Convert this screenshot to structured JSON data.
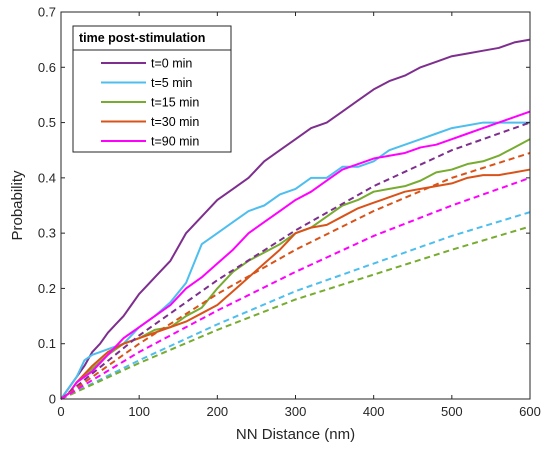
{
  "chart_data": {
    "type": "line",
    "title": "",
    "xlabel": "NN Distance (nm)",
    "ylabel": "Probability",
    "xlim": [
      0,
      600
    ],
    "ylim": [
      0,
      0.7
    ],
    "xticks": [
      0,
      100,
      200,
      300,
      400,
      500,
      600
    ],
    "yticks": [
      0,
      0.1,
      0.2,
      0.3,
      0.4,
      0.5,
      0.6,
      0.7
    ],
    "xtick_labels": [
      "0",
      "100",
      "200",
      "300",
      "400",
      "500",
      "600"
    ],
    "ytick_labels": [
      "0",
      "0.1",
      "0.2",
      "0.3",
      "0.4",
      "0.5",
      "0.6",
      "0.7"
    ],
    "grid": false,
    "legend": {
      "title": "time post-stimulation",
      "placement": "top-left"
    },
    "series": [
      {
        "name": "t=0 min",
        "color": "#7e2f8e",
        "style": "solid",
        "x": [
          0,
          10,
          20,
          30,
          40,
          50,
          60,
          70,
          80,
          90,
          100,
          110,
          120,
          140,
          160,
          180,
          200,
          220,
          240,
          260,
          280,
          300,
          320,
          340,
          360,
          380,
          400,
          420,
          440,
          460,
          480,
          500,
          520,
          540,
          560,
          580,
          600
        ],
        "y": [
          0,
          0.02,
          0.04,
          0.06,
          0.085,
          0.1,
          0.12,
          0.135,
          0.15,
          0.17,
          0.19,
          0.205,
          0.22,
          0.25,
          0.3,
          0.33,
          0.36,
          0.38,
          0.4,
          0.43,
          0.45,
          0.47,
          0.49,
          0.5,
          0.52,
          0.54,
          0.56,
          0.575,
          0.585,
          0.6,
          0.61,
          0.62,
          0.625,
          0.63,
          0.635,
          0.645,
          0.65
        ]
      },
      {
        "name": "t=5 min",
        "color": "#4dbeee",
        "style": "solid",
        "x": [
          0,
          10,
          20,
          30,
          40,
          50,
          60,
          80,
          100,
          120,
          140,
          160,
          180,
          200,
          220,
          240,
          260,
          280,
          300,
          320,
          340,
          360,
          380,
          400,
          420,
          440,
          460,
          480,
          500,
          520,
          540,
          560,
          580,
          600
        ],
        "y": [
          0,
          0.02,
          0.04,
          0.07,
          0.08,
          0.085,
          0.09,
          0.1,
          0.13,
          0.15,
          0.175,
          0.21,
          0.28,
          0.3,
          0.32,
          0.34,
          0.35,
          0.37,
          0.38,
          0.4,
          0.4,
          0.42,
          0.42,
          0.43,
          0.45,
          0.46,
          0.47,
          0.48,
          0.49,
          0.495,
          0.5,
          0.5,
          0.5,
          0.5
        ]
      },
      {
        "name": "t=15 min",
        "color": "#77ac30",
        "style": "solid",
        "x": [
          0,
          10,
          20,
          40,
          60,
          80,
          100,
          120,
          140,
          160,
          180,
          200,
          220,
          240,
          260,
          280,
          300,
          320,
          340,
          360,
          380,
          400,
          420,
          440,
          460,
          480,
          500,
          520,
          540,
          560,
          580,
          600
        ],
        "y": [
          0,
          0.01,
          0.03,
          0.055,
          0.08,
          0.1,
          0.11,
          0.125,
          0.13,
          0.15,
          0.165,
          0.2,
          0.23,
          0.25,
          0.265,
          0.28,
          0.3,
          0.31,
          0.33,
          0.35,
          0.36,
          0.375,
          0.38,
          0.385,
          0.395,
          0.41,
          0.415,
          0.425,
          0.43,
          0.44,
          0.455,
          0.47
        ]
      },
      {
        "name": "t=30 min",
        "color": "#d95319",
        "style": "solid",
        "x": [
          0,
          10,
          20,
          40,
          60,
          80,
          100,
          120,
          140,
          160,
          180,
          200,
          220,
          240,
          260,
          280,
          300,
          320,
          340,
          360,
          380,
          400,
          420,
          440,
          460,
          480,
          500,
          520,
          540,
          560,
          580,
          600
        ],
        "y": [
          0,
          0.01,
          0.03,
          0.06,
          0.085,
          0.1,
          0.11,
          0.12,
          0.13,
          0.14,
          0.155,
          0.17,
          0.195,
          0.22,
          0.245,
          0.27,
          0.3,
          0.31,
          0.315,
          0.33,
          0.345,
          0.355,
          0.365,
          0.375,
          0.38,
          0.385,
          0.39,
          0.4,
          0.405,
          0.405,
          0.41,
          0.415
        ]
      },
      {
        "name": "t=90 min",
        "color": "#ff00ff",
        "style": "solid",
        "x": [
          0,
          10,
          20,
          40,
          60,
          80,
          100,
          120,
          140,
          160,
          180,
          200,
          220,
          240,
          260,
          280,
          300,
          320,
          340,
          360,
          380,
          400,
          420,
          440,
          460,
          480,
          500,
          520,
          540,
          560,
          580,
          600
        ],
        "y": [
          0,
          0.01,
          0.03,
          0.05,
          0.08,
          0.11,
          0.13,
          0.15,
          0.17,
          0.2,
          0.22,
          0.245,
          0.27,
          0.3,
          0.32,
          0.34,
          0.36,
          0.375,
          0.395,
          0.415,
          0.425,
          0.435,
          0.44,
          0.445,
          0.455,
          0.46,
          0.47,
          0.48,
          0.49,
          0.5,
          0.51,
          0.52
        ]
      },
      {
        "name": "",
        "color": "#7e2f8e",
        "style": "dashed",
        "x": [
          0,
          100,
          200,
          300,
          400,
          500,
          600
        ],
        "y": [
          0,
          0.115,
          0.215,
          0.305,
          0.385,
          0.45,
          0.5
        ]
      },
      {
        "name": "",
        "color": "#4dbeee",
        "style": "dashed",
        "x": [
          0,
          100,
          200,
          300,
          400,
          500,
          600
        ],
        "y": [
          0,
          0.07,
          0.135,
          0.195,
          0.245,
          0.295,
          0.338
        ]
      },
      {
        "name": "",
        "color": "#77ac30",
        "style": "dashed",
        "x": [
          0,
          100,
          200,
          300,
          400,
          500,
          600
        ],
        "y": [
          0,
          0.065,
          0.125,
          0.18,
          0.225,
          0.27,
          0.312
        ]
      },
      {
        "name": "",
        "color": "#d95319",
        "style": "dashed",
        "x": [
          0,
          100,
          200,
          300,
          400,
          500,
          600
        ],
        "y": [
          0,
          0.1,
          0.19,
          0.27,
          0.34,
          0.4,
          0.445
        ]
      },
      {
        "name": "",
        "color": "#ff00ff",
        "style": "dashed",
        "x": [
          0,
          100,
          200,
          300,
          400,
          500,
          600
        ],
        "y": [
          0,
          0.085,
          0.16,
          0.23,
          0.295,
          0.35,
          0.4
        ]
      }
    ]
  }
}
